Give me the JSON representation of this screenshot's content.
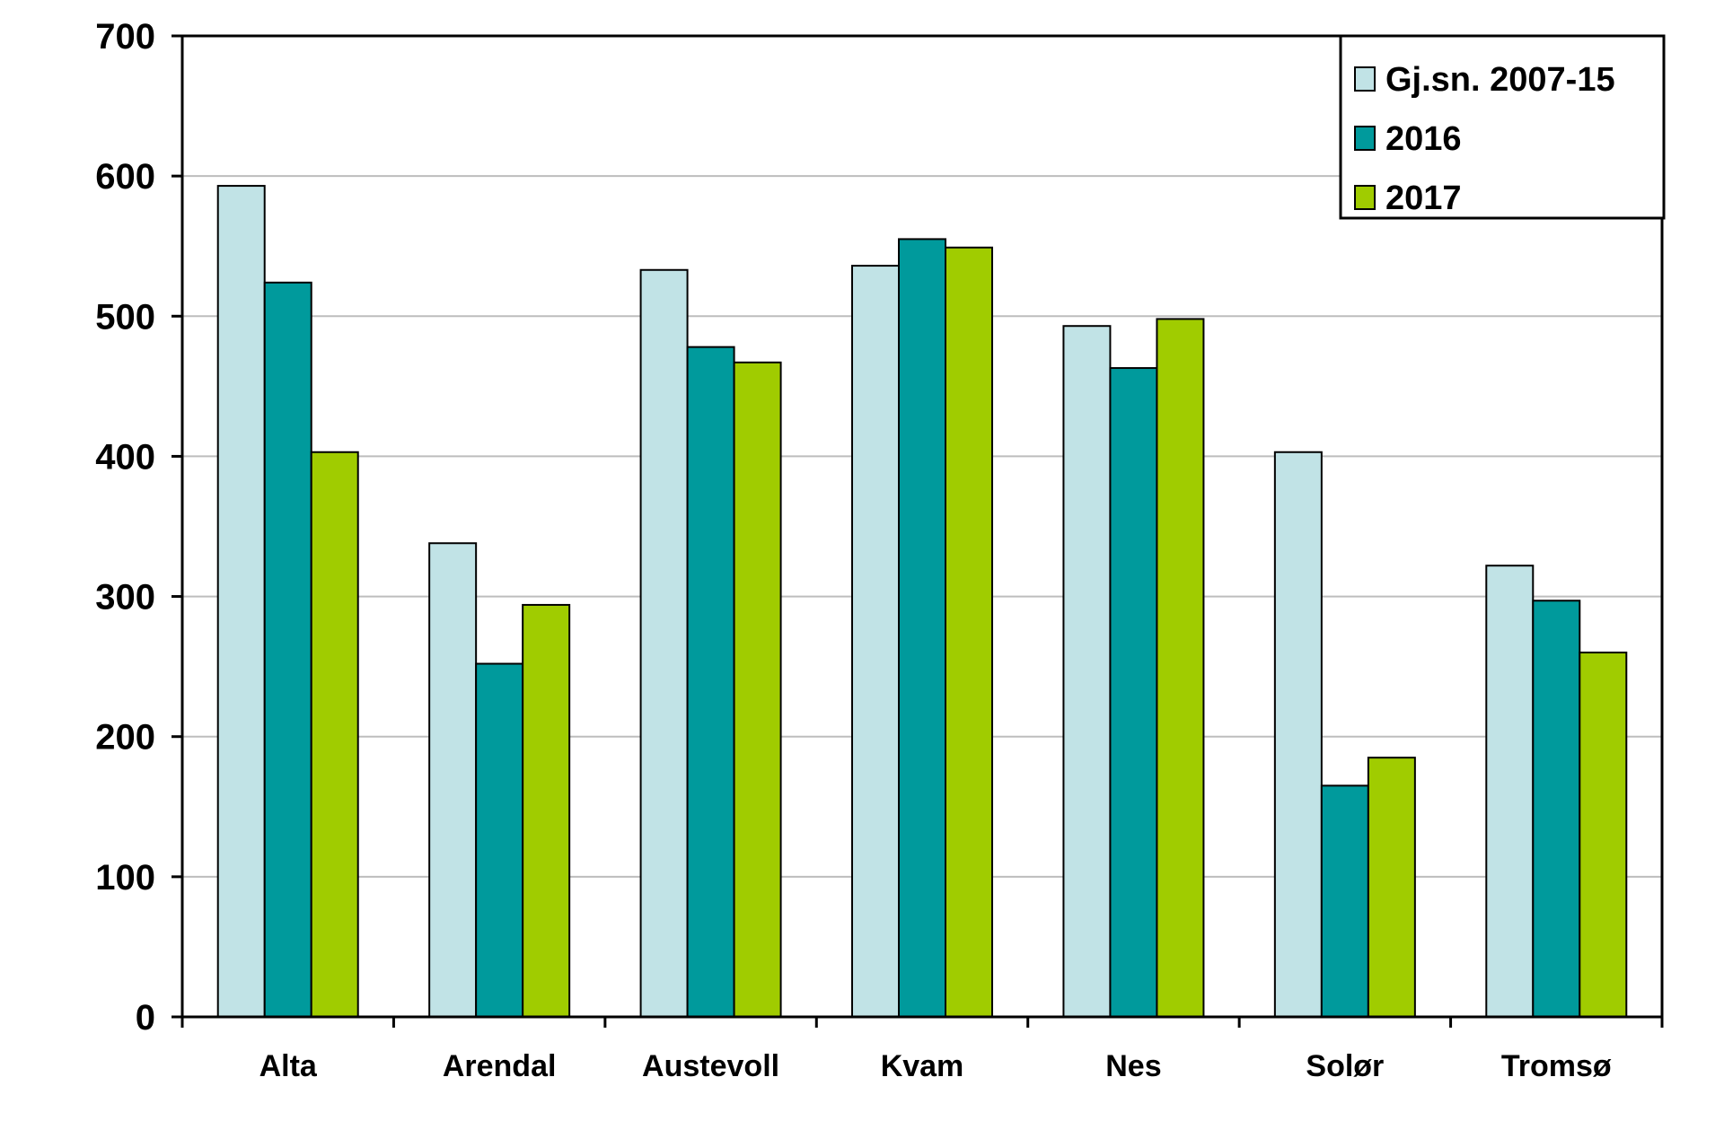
{
  "chart_data": {
    "type": "bar",
    "title": "",
    "xlabel": "",
    "ylabel": "",
    "categories": [
      "Alta",
      "Arendal",
      "Austevoll",
      "Kvam",
      "Nes",
      "Solør",
      "Tromsø"
    ],
    "series": [
      {
        "name": "Gj.sn. 2007-15",
        "color": "#c1e3e6",
        "values": [
          593,
          338,
          533,
          536,
          493,
          403,
          322
        ]
      },
      {
        "name": "2016",
        "color": "#009a9c",
        "values": [
          524,
          252,
          478,
          555,
          463,
          165,
          297
        ]
      },
      {
        "name": "2017",
        "color": "#a0cc00",
        "values": [
          403,
          294,
          467,
          549,
          498,
          185,
          260
        ]
      }
    ],
    "ylim": [
      0,
      700
    ],
    "yticks": [
      0,
      100,
      200,
      300,
      400,
      500,
      600,
      700
    ],
    "grid": true,
    "legend_position": "top-right"
  }
}
